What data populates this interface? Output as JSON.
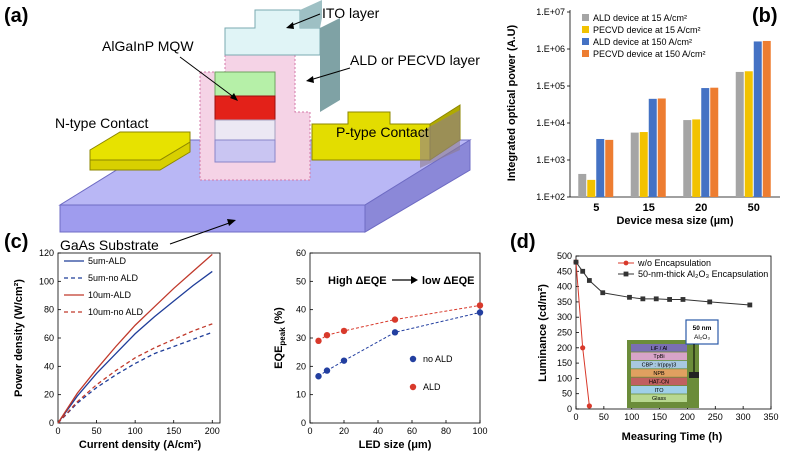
{
  "panels": {
    "a": "(a)",
    "b": "(b)",
    "c": "(c)",
    "d": "(d)"
  },
  "diagram": {
    "labels": {
      "ito": "ITO layer",
      "mqw": "AlGaInP MQW",
      "ald": "ALD or PECVD layer",
      "ncontact": "N-type Contact",
      "pcontact": "P-type Contact",
      "substrate": "GaAs Substrate"
    }
  },
  "colors": {
    "grey": "#a5a5a5",
    "yellow": "#f2c200",
    "blue": "#4472c4",
    "orange": "#ed7d31",
    "navy": "#1f3d99",
    "red": "#c0392b",
    "dotblue": "#233fa0",
    "dotred": "#d8392b"
  },
  "chart_data": [
    {
      "id": "b",
      "type": "bar",
      "scale": "log",
      "title": "",
      "xlabel": "Device mesa size (µm)",
      "ylabel": "Integrated optical power (A.U)",
      "categories": [
        "5",
        "15",
        "20",
        "50"
      ],
      "ylim": [
        100,
        10000000
      ],
      "ytick_labels": [
        "1.E+02",
        "1.E+03",
        "1.E+04",
        "1.E+05",
        "1.E+06",
        "1.E+07"
      ],
      "legend_position": "top-left",
      "series": [
        {
          "name": "ALD device at 15 A/cm²",
          "color": "#a5a5a5",
          "values": [
            420,
            5500,
            12000,
            240000
          ]
        },
        {
          "name": "PECVD device at 15 A/cm²",
          "color": "#f2c200",
          "values": [
            290,
            5700,
            12500,
            250000
          ]
        },
        {
          "name": "ALD device at 150 A/cm²",
          "color": "#4472c4",
          "values": [
            3700,
            45000,
            88000,
            1600000
          ]
        },
        {
          "name": "PECVD device at 150 A/cm²",
          "color": "#ed7d31",
          "values": [
            3500,
            46000,
            90000,
            1650000
          ]
        }
      ]
    },
    {
      "id": "c-left",
      "type": "line",
      "xlabel": "Current density (A/cm²)",
      "ylabel": "Power density (W/cm²)",
      "xlim": [
        0,
        210
      ],
      "ylim": [
        0,
        120
      ],
      "xticks": [
        0,
        50,
        100,
        150,
        200
      ],
      "yticks": [
        0,
        20,
        40,
        60,
        80,
        100,
        120
      ],
      "legend_position": "top-left",
      "series": [
        {
          "name": "5um-ALD",
          "color": "#1f3d99",
          "dashed": false,
          "x": [
            0,
            25,
            50,
            75,
            100,
            125,
            150,
            175,
            200
          ],
          "y": [
            0,
            19,
            35,
            49,
            63,
            75,
            86,
            97,
            107
          ]
        },
        {
          "name": "5um-no ALD",
          "color": "#1f3d99",
          "dashed": true,
          "x": [
            0,
            25,
            50,
            75,
            100,
            125,
            150,
            175,
            200
          ],
          "y": [
            0,
            14,
            25,
            34,
            42,
            49,
            54,
            59,
            64
          ]
        },
        {
          "name": "10um-ALD",
          "color": "#c0392b",
          "dashed": false,
          "x": [
            0,
            25,
            50,
            75,
            100,
            125,
            150,
            175,
            200
          ],
          "y": [
            0,
            21,
            38,
            54,
            69,
            82,
            95,
            107,
            119
          ]
        },
        {
          "name": "10um-no ALD",
          "color": "#c0392b",
          "dashed": true,
          "x": [
            0,
            25,
            50,
            75,
            100,
            125,
            150,
            175,
            200
          ],
          "y": [
            0,
            15,
            27,
            37,
            46,
            53,
            59,
            65,
            70
          ]
        }
      ]
    },
    {
      "id": "c-right",
      "type": "scatter",
      "xlabel": "LED size (μm)",
      "ylabel_main": "EQE",
      "ylabel_sub": "peak",
      "ylabel_unit": " (%)",
      "xlim": [
        0,
        100
      ],
      "ylim": [
        0,
        60
      ],
      "xticks": [
        0,
        20,
        40,
        60,
        80,
        100
      ],
      "yticks": [
        0,
        10,
        20,
        30,
        40,
        50,
        60
      ],
      "annotation_left": "High ΔEQE",
      "annotation_right": "low ΔEQE",
      "legend_position": "center-right",
      "series": [
        {
          "name": "no ALD",
          "color": "#233fa0",
          "x": [
            5,
            10,
            20,
            50,
            100
          ],
          "y": [
            16.5,
            18.5,
            22,
            32,
            39
          ]
        },
        {
          "name": "ALD",
          "color": "#d8392b",
          "x": [
            5,
            10,
            20,
            50,
            100
          ],
          "y": [
            29,
            31,
            32.5,
            36.5,
            41.5
          ]
        }
      ]
    },
    {
      "id": "d",
      "type": "line",
      "xlabel": "Measuring Time (h)",
      "ylabel": "Luminance (cd/m²)",
      "xlim": [
        0,
        350
      ],
      "ylim": [
        0,
        500
      ],
      "xticks": [
        0,
        50,
        100,
        150,
        200,
        250,
        300,
        350
      ],
      "yticks": [
        0,
        50,
        100,
        150,
        200,
        250,
        300,
        350,
        400,
        450,
        500
      ],
      "legend_position": "top-right",
      "series": [
        {
          "name": "w/o Encapsulation",
          "color": "#d8392b",
          "x": [
            0,
            12,
            24
          ],
          "y": [
            480,
            200,
            10
          ]
        },
        {
          "name": "50-nm-thick Al₂O₃ Encapsulation",
          "color": "#333333",
          "x": [
            0,
            12,
            24,
            48,
            96,
            120,
            144,
            168,
            192,
            240,
            312
          ],
          "y": [
            480,
            450,
            420,
            380,
            365,
            360,
            360,
            358,
            358,
            350,
            340
          ]
        }
      ],
      "inset": {
        "callout": "50 nm",
        "callout_sub": "Al₂O₃",
        "layers": [
          "LiF / Al",
          "TpBi",
          "CBP : Ir(ppy)3",
          "NPB",
          "HAT-CN",
          "ITO",
          "Glass"
        ]
      }
    }
  ]
}
